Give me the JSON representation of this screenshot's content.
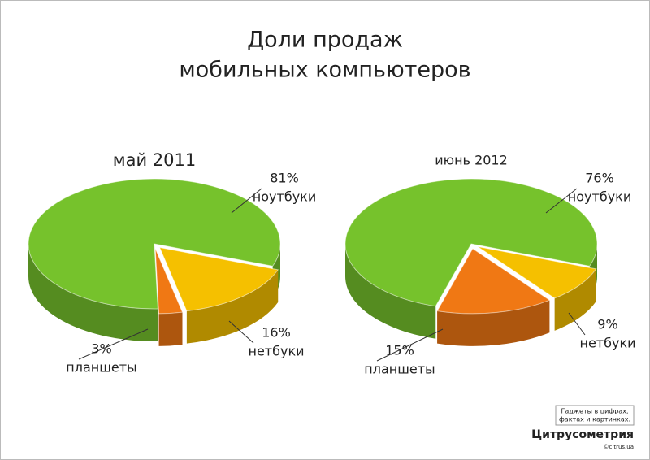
{
  "header": {
    "title": [
      "Доли продаж",
      "мобильных компьютеров"
    ]
  },
  "chart_data": [
    {
      "type": "pie",
      "title": "май 2011",
      "categories": [
        "нетбуки",
        "планшеты",
        "ноутбуки"
      ],
      "values": [
        16,
        3,
        81
      ],
      "value_labels": [
        "16%",
        "3%",
        "81%"
      ],
      "colors": [
        "#f5c000",
        "#f07814",
        "#76c22c"
      ]
    },
    {
      "type": "pie",
      "title": "июнь 2012",
      "categories": [
        "нетбуки",
        "планшеты",
        "ноутбуки"
      ],
      "values": [
        9,
        15,
        76
      ],
      "value_labels": [
        "9%",
        "15%",
        "76%"
      ],
      "colors": [
        "#f5c000",
        "#f07814",
        "#76c22c"
      ]
    }
  ],
  "footer": {
    "tagline": [
      "Гаджеты в цифрах,",
      "фактах и картинках."
    ],
    "brand": "Цитрусометрия",
    "site": "©citrus.ua"
  }
}
